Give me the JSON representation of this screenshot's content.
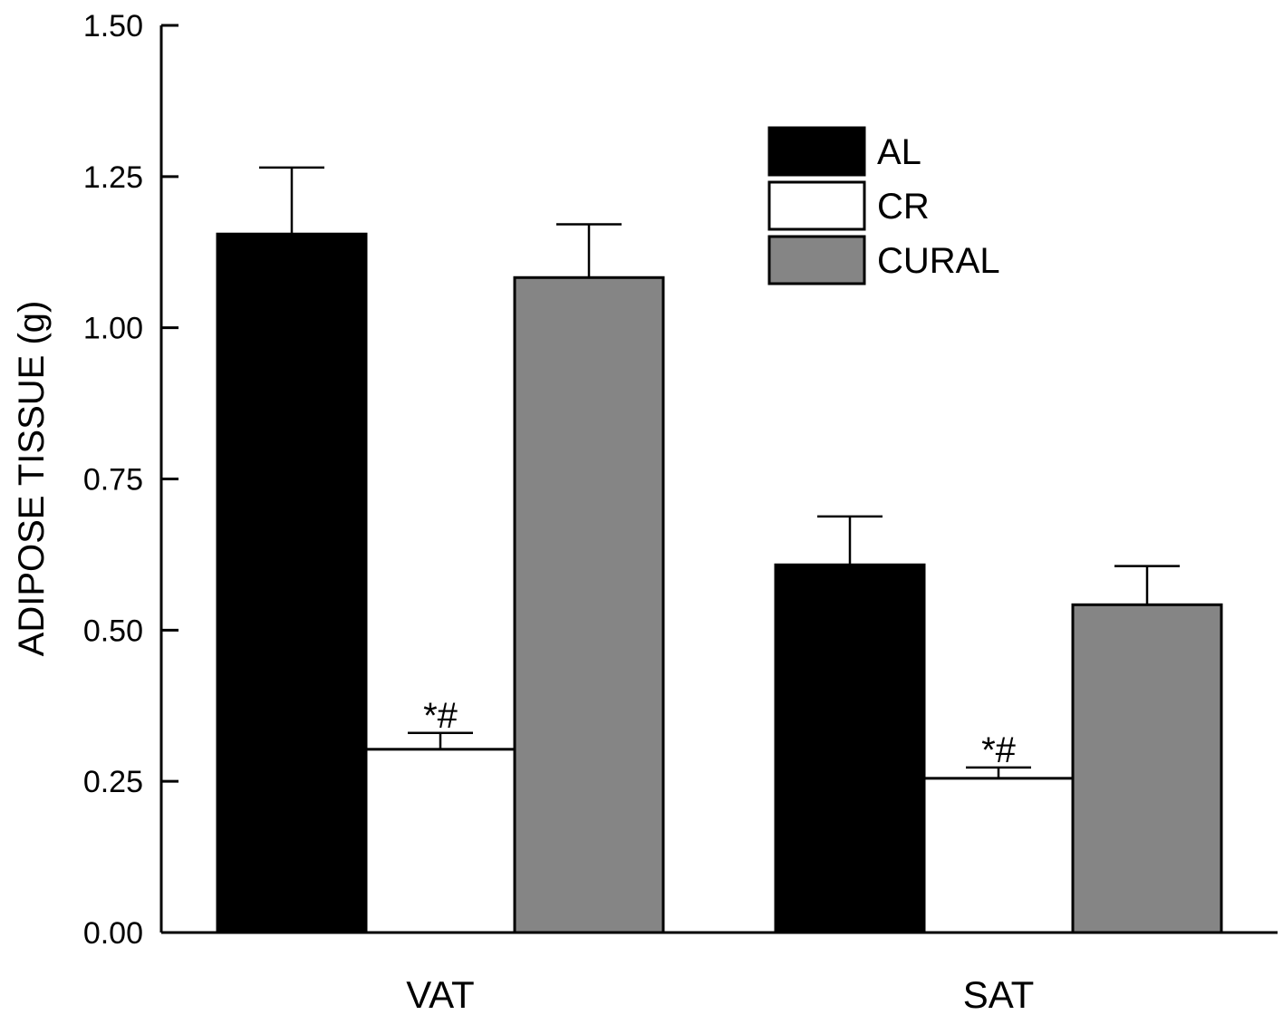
{
  "chart_data": {
    "type": "bar",
    "title": "",
    "xlabel": "",
    "ylabel": "ADIPOSE TISSUE (g)",
    "ylim": [
      0,
      1.5
    ],
    "yticks": [
      "0.00",
      "0.25",
      "0.50",
      "0.75",
      "1.00",
      "1.25",
      "1.50"
    ],
    "categories": [
      "VAT",
      "SAT"
    ],
    "legend_position": "top-right",
    "grid": false,
    "series": [
      {
        "name": "AL",
        "color": "#000000",
        "values": [
          1.155,
          0.608
        ],
        "errors": [
          0.11,
          0.08
        ],
        "annotations": [
          "",
          ""
        ]
      },
      {
        "name": "CR",
        "color": "#ffffff",
        "values": [
          0.303,
          0.255
        ],
        "errors": [
          0.027,
          0.018
        ],
        "annotations": [
          "*#",
          "*#"
        ]
      },
      {
        "name": "CURAL",
        "color": "#858585",
        "values": [
          1.083,
          0.542
        ],
        "errors": [
          0.088,
          0.064
        ],
        "annotations": [
          "",
          ""
        ]
      }
    ]
  }
}
